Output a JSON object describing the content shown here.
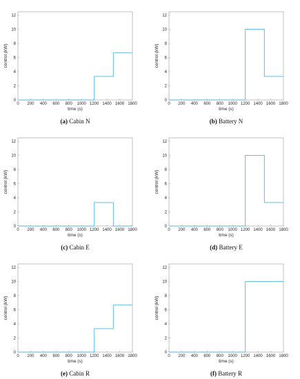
{
  "colors": {
    "series": "#4fb3e8",
    "frame": "#9a9a9a",
    "text": "#262626"
  },
  "chart_data": [
    {
      "type": "line",
      "caption_letter": "(a)",
      "caption_text": "Cabin N",
      "xlabel": "time (s)",
      "ylabel": "control (kW)",
      "xlim": [
        0,
        1800
      ],
      "ylim": [
        0,
        12.5
      ],
      "xticks": [
        0,
        200,
        400,
        600,
        800,
        1000,
        1200,
        1400,
        1600,
        1800
      ],
      "yticks": [
        0,
        2,
        4,
        6,
        8,
        10,
        12
      ],
      "grid": false,
      "series": [
        {
          "x": [
            0,
            1200,
            1200,
            1500,
            1500,
            1800
          ],
          "y": [
            0,
            0,
            3.33,
            3.33,
            6.67,
            6.67
          ]
        }
      ]
    },
    {
      "type": "line",
      "caption_letter": "(b)",
      "caption_text": "Battery N",
      "xlabel": "time (s)",
      "ylabel": "control (kW)",
      "xlim": [
        0,
        1800
      ],
      "ylim": [
        0,
        12.5
      ],
      "xticks": [
        0,
        200,
        400,
        600,
        800,
        1000,
        1200,
        1400,
        1600,
        1800
      ],
      "yticks": [
        0,
        2,
        4,
        6,
        8,
        10,
        12
      ],
      "grid": false,
      "series": [
        {
          "x": [
            0,
            1200,
            1200,
            1500,
            1500,
            1800
          ],
          "y": [
            0,
            0,
            10,
            10,
            3.33,
            3.33
          ]
        }
      ]
    },
    {
      "type": "line",
      "caption_letter": "(c)",
      "caption_text": "Cabin E",
      "xlabel": "time (s)",
      "ylabel": "control (kW)",
      "xlim": [
        0,
        1800
      ],
      "ylim": [
        0,
        12.5
      ],
      "xticks": [
        0,
        200,
        400,
        600,
        800,
        1000,
        1200,
        1400,
        1600,
        1800
      ],
      "yticks": [
        0,
        2,
        4,
        6,
        8,
        10,
        12
      ],
      "grid": false,
      "series": [
        {
          "x": [
            0,
            1200,
            1200,
            1500,
            1500,
            1800
          ],
          "y": [
            0,
            0,
            3.33,
            3.33,
            0,
            0
          ]
        }
      ]
    },
    {
      "type": "line",
      "caption_letter": "(d)",
      "caption_text": "Battery E",
      "xlabel": "time (s)",
      "ylabel": "control (kW)",
      "xlim": [
        0,
        1800
      ],
      "ylim": [
        0,
        12.5
      ],
      "xticks": [
        0,
        200,
        400,
        600,
        800,
        1000,
        1200,
        1400,
        1600,
        1800
      ],
      "yticks": [
        0,
        2,
        4,
        6,
        8,
        10,
        12
      ],
      "grid": false,
      "series": [
        {
          "x": [
            0,
            1200,
            1200,
            1500,
            1500,
            1800
          ],
          "y": [
            0,
            0,
            10,
            10,
            3.33,
            3.33
          ]
        }
      ]
    },
    {
      "type": "line",
      "caption_letter": "(e)",
      "caption_text": "Cabin R",
      "xlabel": "time (s)",
      "ylabel": "control (kW)",
      "xlim": [
        0,
        1800
      ],
      "ylim": [
        0,
        12.5
      ],
      "xticks": [
        0,
        200,
        400,
        600,
        800,
        1000,
        1200,
        1400,
        1600,
        1800
      ],
      "yticks": [
        0,
        2,
        4,
        6,
        8,
        10,
        12
      ],
      "grid": false,
      "series": [
        {
          "x": [
            0,
            1200,
            1200,
            1500,
            1500,
            1800
          ],
          "y": [
            0,
            0,
            3.33,
            3.33,
            6.67,
            6.67
          ]
        }
      ]
    },
    {
      "type": "line",
      "caption_letter": "(f)",
      "caption_text": "Battery R",
      "xlabel": "time (s)",
      "ylabel": "control (kW)",
      "xlim": [
        0,
        1800
      ],
      "ylim": [
        0,
        12.5
      ],
      "xticks": [
        0,
        200,
        400,
        600,
        800,
        1000,
        1200,
        1400,
        1600,
        1800
      ],
      "yticks": [
        0,
        2,
        4,
        6,
        8,
        10,
        12
      ],
      "grid": false,
      "series": [
        {
          "x": [
            0,
            1200,
            1200,
            1800
          ],
          "y": [
            0,
            0,
            10,
            10
          ]
        }
      ]
    }
  ]
}
